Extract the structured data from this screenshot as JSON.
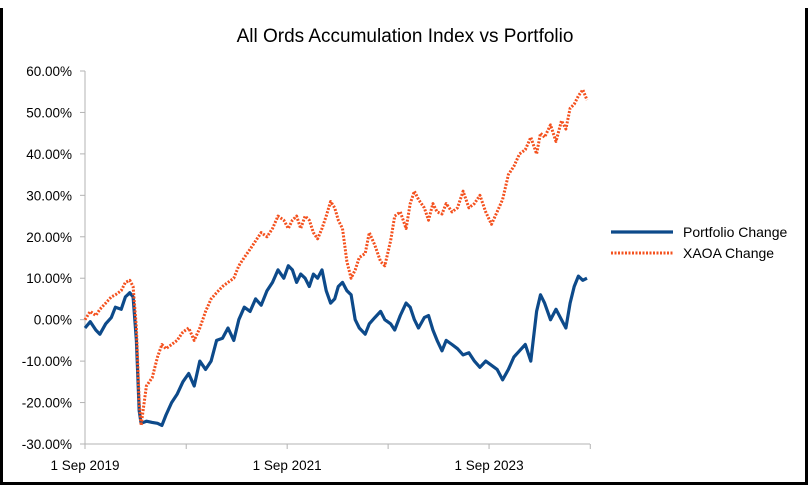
{
  "chart_data": {
    "type": "line",
    "title": "All Ords Accumulation Index vs Portfolio",
    "xlabel": "",
    "ylabel": "",
    "x_tick_labels": [
      "1 Sep 2019",
      "1 Sep 2021",
      "1 Sep 2023"
    ],
    "x_range": [
      "2019-09-01",
      "2024-08-31"
    ],
    "y_tick_labels": [
      "60.00%",
      "50.00%",
      "40.00%",
      "30.00%",
      "20.00%",
      "10.00%",
      "0.00%",
      "-10.00%",
      "-20.00%",
      "-30.00%"
    ],
    "ylim": [
      -30,
      60
    ],
    "grid": false,
    "legend_position": "right",
    "series": [
      {
        "name": "Portfolio Change",
        "color": "#0d4a8a",
        "style": "solid",
        "points": [
          [
            "2019-09-01",
            -2.0
          ],
          [
            "2019-09-20",
            -0.5
          ],
          [
            "2019-10-10",
            -2.5
          ],
          [
            "2019-10-25",
            -3.5
          ],
          [
            "2019-11-15",
            -1.0
          ],
          [
            "2019-12-05",
            0.5
          ],
          [
            "2019-12-20",
            3.0
          ],
          [
            "2020-01-10",
            2.5
          ],
          [
            "2020-01-25",
            5.5
          ],
          [
            "2020-02-10",
            6.5
          ],
          [
            "2020-02-22",
            5.5
          ],
          [
            "2020-03-05",
            -5.0
          ],
          [
            "2020-03-15",
            -22.0
          ],
          [
            "2020-03-22",
            -25.0
          ],
          [
            "2020-04-10",
            -24.5
          ],
          [
            "2020-05-01",
            -24.8
          ],
          [
            "2020-05-20",
            -25.0
          ],
          [
            "2020-06-05",
            -25.5
          ],
          [
            "2020-06-20",
            -23.0
          ],
          [
            "2020-07-10",
            -20.0
          ],
          [
            "2020-07-30",
            -18.0
          ],
          [
            "2020-08-20",
            -15.0
          ],
          [
            "2020-09-10",
            -13.0
          ],
          [
            "2020-09-30",
            -16.0
          ],
          [
            "2020-10-20",
            -10.0
          ],
          [
            "2020-11-10",
            -12.0
          ],
          [
            "2020-11-30",
            -10.0
          ],
          [
            "2020-12-20",
            -5.0
          ],
          [
            "2021-01-10",
            -4.5
          ],
          [
            "2021-01-30",
            -2.0
          ],
          [
            "2021-02-20",
            -5.0
          ],
          [
            "2021-03-10",
            0.0
          ],
          [
            "2021-03-30",
            3.0
          ],
          [
            "2021-04-20",
            2.0
          ],
          [
            "2021-05-10",
            5.0
          ],
          [
            "2021-05-30",
            3.5
          ],
          [
            "2021-06-20",
            7.0
          ],
          [
            "2021-07-10",
            9.0
          ],
          [
            "2021-07-30",
            12.0
          ],
          [
            "2021-08-20",
            10.0
          ],
          [
            "2021-09-05",
            13.0
          ],
          [
            "2021-09-20",
            12.0
          ],
          [
            "2021-10-05",
            9.0
          ],
          [
            "2021-10-20",
            11.0
          ],
          [
            "2021-11-05",
            10.0
          ],
          [
            "2021-11-20",
            8.0
          ],
          [
            "2021-12-05",
            11.0
          ],
          [
            "2021-12-20",
            10.0
          ],
          [
            "2022-01-05",
            12.0
          ],
          [
            "2022-01-20",
            7.0
          ],
          [
            "2022-02-05",
            4.0
          ],
          [
            "2022-02-20",
            5.0
          ],
          [
            "2022-03-05",
            8.0
          ],
          [
            "2022-03-20",
            9.0
          ],
          [
            "2022-04-05",
            7.0
          ],
          [
            "2022-04-20",
            6.0
          ],
          [
            "2022-05-05",
            0.0
          ],
          [
            "2022-05-20",
            -2.0
          ],
          [
            "2022-06-10",
            -3.5
          ],
          [
            "2022-06-25",
            -1.0
          ],
          [
            "2022-07-15",
            0.5
          ],
          [
            "2022-08-05",
            2.0
          ],
          [
            "2022-08-20",
            0.0
          ],
          [
            "2022-09-10",
            -1.0
          ],
          [
            "2022-09-25",
            -2.5
          ],
          [
            "2022-10-15",
            1.0
          ],
          [
            "2022-11-05",
            4.0
          ],
          [
            "2022-11-20",
            3.0
          ],
          [
            "2022-12-05",
            0.0
          ],
          [
            "2022-12-20",
            -2.0
          ],
          [
            "2023-01-10",
            0.5
          ],
          [
            "2023-01-25",
            1.0
          ],
          [
            "2023-02-10",
            -2.5
          ],
          [
            "2023-02-25",
            -5.0
          ],
          [
            "2023-03-15",
            -7.5
          ],
          [
            "2023-03-30",
            -5.0
          ],
          [
            "2023-04-20",
            -6.0
          ],
          [
            "2023-05-10",
            -7.0
          ],
          [
            "2023-05-30",
            -8.5
          ],
          [
            "2023-06-20",
            -8.0
          ],
          [
            "2023-07-10",
            -10.0
          ],
          [
            "2023-07-30",
            -11.5
          ],
          [
            "2023-08-20",
            -10.0
          ],
          [
            "2023-09-10",
            -11.0
          ],
          [
            "2023-09-30",
            -12.0
          ],
          [
            "2023-10-20",
            -14.5
          ],
          [
            "2023-11-10",
            -12.0
          ],
          [
            "2023-11-30",
            -9.0
          ],
          [
            "2023-12-20",
            -7.5
          ],
          [
            "2024-01-10",
            -6.0
          ],
          [
            "2024-01-30",
            -10.0
          ],
          [
            "2024-02-20",
            2.0
          ],
          [
            "2024-03-05",
            6.0
          ],
          [
            "2024-03-20",
            4.0
          ],
          [
            "2024-04-10",
            0.0
          ],
          [
            "2024-04-30",
            2.5
          ],
          [
            "2024-05-20",
            0.0
          ],
          [
            "2024-06-05",
            -2.0
          ],
          [
            "2024-06-20",
            4.0
          ],
          [
            "2024-07-05",
            8.0
          ],
          [
            "2024-07-20",
            10.5
          ],
          [
            "2024-08-05",
            9.5
          ],
          [
            "2024-08-20",
            10.0
          ]
        ]
      },
      {
        "name": "XAOA Change",
        "color": "#f4511e",
        "style": "dotted",
        "points": [
          [
            "2019-09-01",
            0.0
          ],
          [
            "2019-09-20",
            2.0
          ],
          [
            "2019-10-10",
            1.0
          ],
          [
            "2019-10-25",
            2.5
          ],
          [
            "2019-11-15",
            4.0
          ],
          [
            "2019-12-05",
            5.5
          ],
          [
            "2019-12-20",
            6.0
          ],
          [
            "2020-01-10",
            7.0
          ],
          [
            "2020-01-25",
            9.0
          ],
          [
            "2020-02-10",
            9.5
          ],
          [
            "2020-02-22",
            8.0
          ],
          [
            "2020-03-05",
            -2.0
          ],
          [
            "2020-03-15",
            -20.0
          ],
          [
            "2020-03-22",
            -25.5
          ],
          [
            "2020-04-10",
            -16.0
          ],
          [
            "2020-05-01",
            -14.0
          ],
          [
            "2020-05-20",
            -9.0
          ],
          [
            "2020-06-05",
            -6.0
          ],
          [
            "2020-06-20",
            -7.0
          ],
          [
            "2020-07-10",
            -6.0
          ],
          [
            "2020-07-30",
            -5.0
          ],
          [
            "2020-08-20",
            -3.0
          ],
          [
            "2020-09-10",
            -2.0
          ],
          [
            "2020-09-30",
            -5.0
          ],
          [
            "2020-10-20",
            -2.0
          ],
          [
            "2020-11-10",
            2.0
          ],
          [
            "2020-11-30",
            5.0
          ],
          [
            "2020-12-20",
            6.5
          ],
          [
            "2021-01-10",
            8.0
          ],
          [
            "2021-01-30",
            9.0
          ],
          [
            "2021-02-20",
            10.0
          ],
          [
            "2021-03-10",
            13.0
          ],
          [
            "2021-03-30",
            15.0
          ],
          [
            "2021-04-20",
            17.0
          ],
          [
            "2021-05-10",
            19.0
          ],
          [
            "2021-05-30",
            21.0
          ],
          [
            "2021-06-20",
            20.0
          ],
          [
            "2021-07-10",
            22.0
          ],
          [
            "2021-07-30",
            25.0
          ],
          [
            "2021-08-20",
            24.0
          ],
          [
            "2021-09-05",
            22.0
          ],
          [
            "2021-09-20",
            24.0
          ],
          [
            "2021-10-05",
            25.0
          ],
          [
            "2021-10-20",
            22.0
          ],
          [
            "2021-11-05",
            25.0
          ],
          [
            "2021-11-20",
            24.0
          ],
          [
            "2021-12-05",
            21.0
          ],
          [
            "2021-12-20",
            19.5
          ],
          [
            "2022-01-05",
            22.0
          ],
          [
            "2022-01-20",
            25.0
          ],
          [
            "2022-02-05",
            28.5
          ],
          [
            "2022-02-20",
            27.0
          ],
          [
            "2022-03-05",
            24.0
          ],
          [
            "2022-03-20",
            22.0
          ],
          [
            "2022-04-05",
            14.0
          ],
          [
            "2022-04-20",
            10.0
          ],
          [
            "2022-05-05",
            12.0
          ],
          [
            "2022-05-20",
            15.0
          ],
          [
            "2022-06-10",
            16.0
          ],
          [
            "2022-06-25",
            21.0
          ],
          [
            "2022-07-15",
            18.0
          ],
          [
            "2022-08-05",
            14.0
          ],
          [
            "2022-08-20",
            13.0
          ],
          [
            "2022-09-10",
            19.0
          ],
          [
            "2022-09-25",
            25.0
          ],
          [
            "2022-10-15",
            26.0
          ],
          [
            "2022-11-05",
            22.0
          ],
          [
            "2022-11-20",
            28.0
          ],
          [
            "2022-12-05",
            31.0
          ],
          [
            "2022-12-20",
            29.0
          ],
          [
            "2023-01-10",
            27.0
          ],
          [
            "2023-01-25",
            24.0
          ],
          [
            "2023-02-10",
            28.0
          ],
          [
            "2023-02-25",
            26.0
          ],
          [
            "2023-03-15",
            25.5
          ],
          [
            "2023-03-30",
            28.0
          ],
          [
            "2023-04-20",
            26.0
          ],
          [
            "2023-05-10",
            27.0
          ],
          [
            "2023-05-30",
            31.0
          ],
          [
            "2023-06-20",
            27.0
          ],
          [
            "2023-07-10",
            28.0
          ],
          [
            "2023-07-30",
            30.0
          ],
          [
            "2023-08-20",
            26.0
          ],
          [
            "2023-09-10",
            23.0
          ],
          [
            "2023-09-30",
            26.0
          ],
          [
            "2023-10-20",
            29.0
          ],
          [
            "2023-11-10",
            35.0
          ],
          [
            "2023-11-30",
            37.0
          ],
          [
            "2023-12-20",
            40.0
          ],
          [
            "2024-01-10",
            41.0
          ],
          [
            "2024-01-30",
            44.0
          ],
          [
            "2024-02-20",
            40.0
          ],
          [
            "2024-03-05",
            45.0
          ],
          [
            "2024-03-20",
            44.0
          ],
          [
            "2024-04-10",
            47.0
          ],
          [
            "2024-04-30",
            43.0
          ],
          [
            "2024-05-20",
            48.0
          ],
          [
            "2024-06-05",
            46.0
          ],
          [
            "2024-06-20",
            51.0
          ],
          [
            "2024-07-05",
            52.0
          ],
          [
            "2024-07-20",
            54.0
          ],
          [
            "2024-08-05",
            55.5
          ],
          [
            "2024-08-20",
            53.0
          ]
        ]
      }
    ]
  }
}
